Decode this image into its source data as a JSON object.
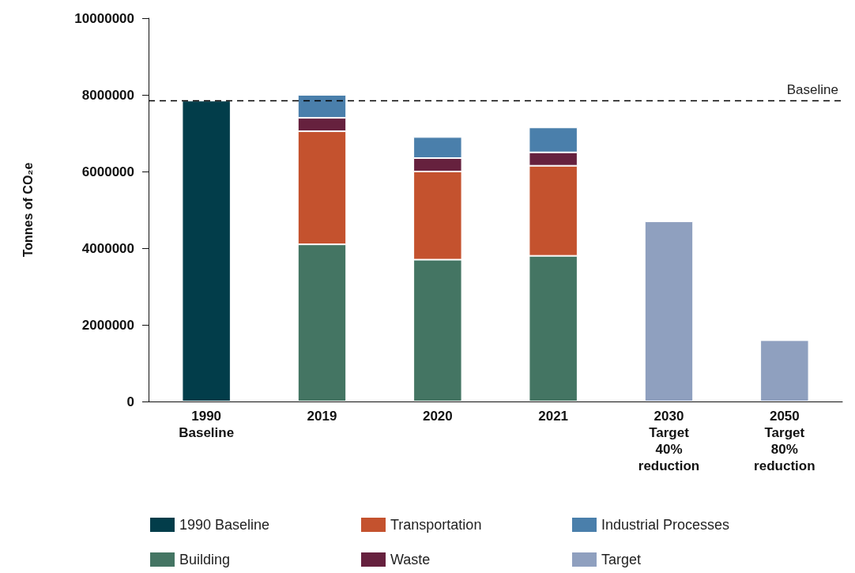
{
  "chart_data": {
    "type": "bar",
    "ylabel": "Tonnes of CO₂e",
    "stacked": true,
    "categories": [
      "1990\nBaseline",
      "2019",
      "2020",
      "2021",
      "2030\nTarget\n40%\nreduction",
      "2050\nTarget\n80%\nreduction"
    ],
    "series": [
      {
        "name": "1990 Baseline",
        "color": "#023d4a",
        "values": [
          7850000,
          null,
          null,
          null,
          null,
          null
        ]
      },
      {
        "name": "Building",
        "color": "#447563",
        "values": [
          null,
          4100000,
          3700000,
          3800000,
          null,
          null
        ]
      },
      {
        "name": "Transportation",
        "color": "#c4522e",
        "values": [
          null,
          2950000,
          2300000,
          2350000,
          null,
          null
        ]
      },
      {
        "name": "Waste",
        "color": "#66213e",
        "values": [
          null,
          350000,
          350000,
          350000,
          null,
          null
        ]
      },
      {
        "name": "Industrial Processes",
        "color": "#4a7fab",
        "values": [
          null,
          600000,
          550000,
          650000,
          null,
          null
        ]
      },
      {
        "name": "Target",
        "color": "#8fa0bf",
        "values": [
          null,
          null,
          null,
          null,
          4700000,
          1600000
        ]
      }
    ],
    "ylim": [
      0,
      10000000
    ],
    "yticks": [
      0,
      2000000,
      4000000,
      6000000,
      8000000,
      10000000
    ],
    "ref_lines": [
      {
        "axis": "y",
        "value": 7850000,
        "label": "Baseline",
        "color": "#000000",
        "line_style": "dashed"
      }
    ],
    "grid": false,
    "legend": "bottom"
  }
}
